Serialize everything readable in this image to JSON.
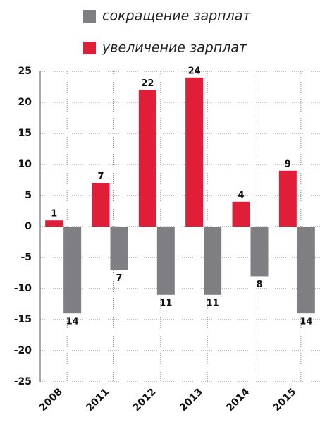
{
  "chart_data": {
    "type": "bar",
    "categories": [
      "2008",
      "2011",
      "2012",
      "2013",
      "2014",
      "2015"
    ],
    "series": [
      {
        "name": "сокращение зарплат",
        "color": "#7f7f83",
        "values": [
          -14,
          -7,
          -11,
          -11,
          -8,
          -14
        ],
        "value_labels": [
          "14",
          "7",
          "11",
          "11",
          "8",
          "14"
        ]
      },
      {
        "name": "увеличение зарплат",
        "color": "#e01e37",
        "values": [
          1,
          7,
          22,
          24,
          4,
          9
        ]
      }
    ],
    "ylim": [
      -25,
      25
    ],
    "yticks": [
      -25,
      -20,
      -15,
      -10,
      -5,
      0,
      5,
      10,
      15,
      20,
      25
    ],
    "grid": true
  }
}
